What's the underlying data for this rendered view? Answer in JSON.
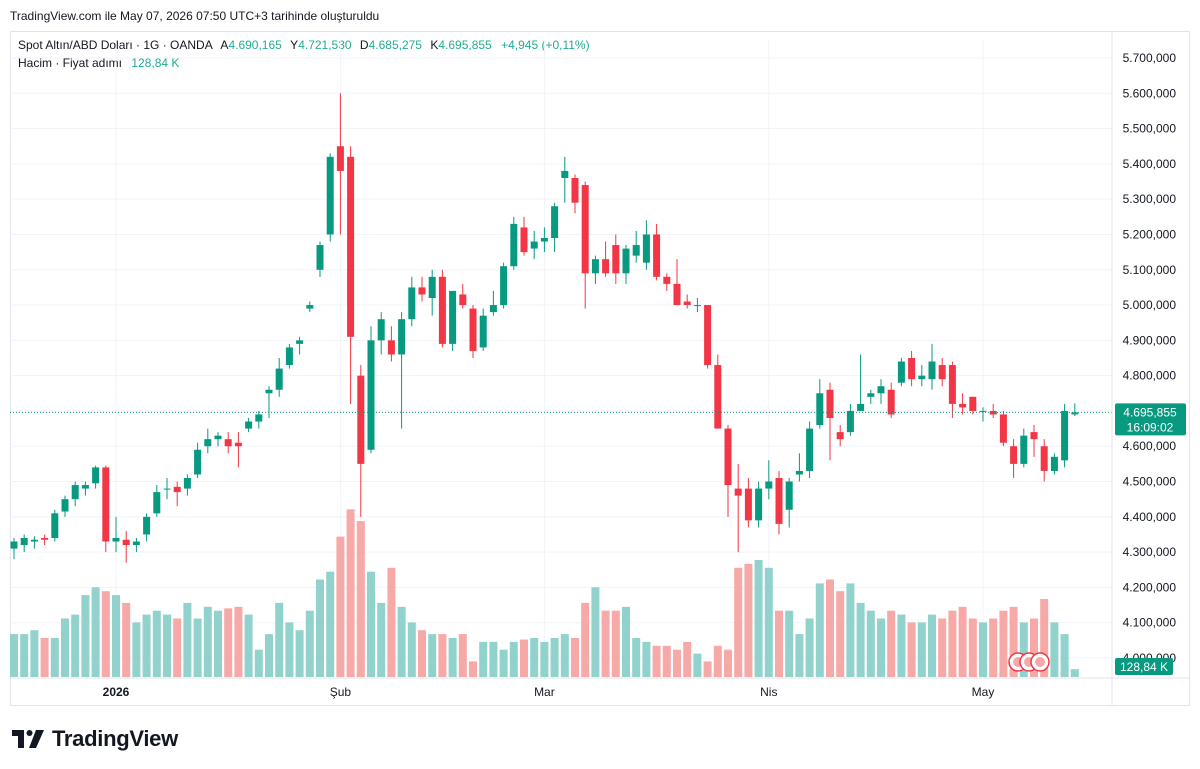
{
  "header": {
    "created_text": "TradingView.com ile May 07, 2026 07:50 UTC+3 tarihinde oluşturuldu"
  },
  "legend": {
    "symbol": "Spot Altın/ABD Doları · 1G · OANDA",
    "open_label": "A",
    "open_value": "4.690,165",
    "high_label": "Y",
    "high_value": "4.721,530",
    "low_label": "D",
    "low_value": "4.685,275",
    "close_label": "K",
    "close_value": "4.695,855",
    "change": "+4,945 (+0,11%)",
    "volume_label": "Hacim · Fiyat adımı",
    "volume_value": "128,84 K"
  },
  "brand": {
    "name": "TradingView"
  },
  "chart_data": {
    "type": "candlestick",
    "title": "Spot Altın/ABD Doları · 1G · OANDA",
    "ylim": [
      4000000,
      5700000
    ],
    "y_tick_labels": [
      "5.700,000",
      "5.600,000",
      "5.500,000",
      "5.400,000",
      "5.300,000",
      "5.200,000",
      "5.100,000",
      "5.000,000",
      "4.900,000",
      "4.800,000",
      "4.700,000",
      "4.600,000",
      "4.500,000",
      "4.400,000",
      "4.300,000",
      "4.200,000",
      "4.100,000",
      "4.000,000"
    ],
    "y_tick_values": [
      5700000,
      5600000,
      5500000,
      5400000,
      5300000,
      5200000,
      5100000,
      5000000,
      4900000,
      4800000,
      4700000,
      4600000,
      4500000,
      4400000,
      4300000,
      4200000,
      4100000,
      4000000
    ],
    "x_tick_labels": [
      {
        "label": "2026",
        "index": 10
      },
      {
        "label": "Şub",
        "index": 32
      },
      {
        "label": "Mar",
        "index": 52
      },
      {
        "label": "Nis",
        "index": 74
      },
      {
        "label": "May",
        "index": 95
      }
    ],
    "last_price_label": "4.695,855",
    "countdown": "16:09:02",
    "volume_label": "128,84 K",
    "up_color": "#089981",
    "down_color": "#f23645",
    "up_volume_color": "#92d2cc",
    "down_volume_color": "#f7a9a7",
    "candles": [
      {
        "o": 4310000,
        "h": 4340000,
        "l": 4280000,
        "c": 4330000,
        "v": 0.55
      },
      {
        "o": 4320000,
        "h": 4350000,
        "l": 4300000,
        "c": 4340000,
        "v": 0.55
      },
      {
        "o": 4330000,
        "h": 4345000,
        "l": 4310000,
        "c": 4335000,
        "v": 0.6
      },
      {
        "o": 4340000,
        "h": 4350000,
        "l": 4320000,
        "c": 4335000,
        "v": 0.5
      },
      {
        "o": 4340000,
        "h": 4420000,
        "l": 4330000,
        "c": 4410000,
        "v": 0.5
      },
      {
        "o": 4415000,
        "h": 4460000,
        "l": 4400000,
        "c": 4450000,
        "v": 0.75
      },
      {
        "o": 4450000,
        "h": 4500000,
        "l": 4430000,
        "c": 4490000,
        "v": 0.8
      },
      {
        "o": 4480000,
        "h": 4500000,
        "l": 4460000,
        "c": 4490000,
        "v": 1.05
      },
      {
        "o": 4495000,
        "h": 4545000,
        "l": 4480000,
        "c": 4540000,
        "v": 1.15
      },
      {
        "o": 4540000,
        "h": 4545000,
        "l": 4300000,
        "c": 4330000,
        "v": 1.1
      },
      {
        "o": 4330000,
        "h": 4400000,
        "l": 4300000,
        "c": 4340000,
        "v": 1.05
      },
      {
        "o": 4335000,
        "h": 4360000,
        "l": 4270000,
        "c": 4320000,
        "v": 0.95
      },
      {
        "o": 4320000,
        "h": 4340000,
        "l": 4300000,
        "c": 4330000,
        "v": 0.7
      },
      {
        "o": 4350000,
        "h": 4410000,
        "l": 4330000,
        "c": 4400000,
        "v": 0.8
      },
      {
        "o": 4410000,
        "h": 4490000,
        "l": 4400000,
        "c": 4470000,
        "v": 0.85
      },
      {
        "o": 4480000,
        "h": 4510000,
        "l": 4450000,
        "c": 4480000,
        "v": 0.8
      },
      {
        "o": 4485000,
        "h": 4500000,
        "l": 4430000,
        "c": 4470000,
        "v": 0.75
      },
      {
        "o": 4480000,
        "h": 4520000,
        "l": 4460000,
        "c": 4510000,
        "v": 0.95
      },
      {
        "o": 4520000,
        "h": 4610000,
        "l": 4510000,
        "c": 4590000,
        "v": 0.75
      },
      {
        "o": 4600000,
        "h": 4650000,
        "l": 4580000,
        "c": 4620000,
        "v": 0.9
      },
      {
        "o": 4620000,
        "h": 4640000,
        "l": 4600000,
        "c": 4630000,
        "v": 0.85
      },
      {
        "o": 4620000,
        "h": 4640000,
        "l": 4580000,
        "c": 4600000,
        "v": 0.88
      },
      {
        "o": 4610000,
        "h": 4640000,
        "l": 4540000,
        "c": 4600000,
        "v": 0.9
      },
      {
        "o": 4650000,
        "h": 4680000,
        "l": 4640000,
        "c": 4670000,
        "v": 0.8
      },
      {
        "o": 4670000,
        "h": 4700000,
        "l": 4650000,
        "c": 4690000,
        "v": 0.35
      },
      {
        "o": 4750000,
        "h": 4770000,
        "l": 4680000,
        "c": 4760000,
        "v": 0.55
      },
      {
        "o": 4760000,
        "h": 4850000,
        "l": 4740000,
        "c": 4820000,
        "v": 0.95
      },
      {
        "o": 4830000,
        "h": 4890000,
        "l": 4820000,
        "c": 4880000,
        "v": 0.7
      },
      {
        "o": 4890000,
        "h": 4910000,
        "l": 4860000,
        "c": 4900000,
        "v": 0.6
      },
      {
        "o": 4990000,
        "h": 5010000,
        "l": 4980000,
        "c": 5000000,
        "v": 0.85
      },
      {
        "o": 5100000,
        "h": 5180000,
        "l": 5080000,
        "c": 5170000,
        "v": 1.25
      },
      {
        "o": 5200000,
        "h": 5430000,
        "l": 5180000,
        "c": 5420000,
        "v": 1.35
      },
      {
        "o": 5450000,
        "h": 5600000,
        "l": 5200000,
        "c": 5380000,
        "v": 1.8
      },
      {
        "o": 5420000,
        "h": 5450000,
        "l": 4720000,
        "c": 4910000,
        "v": 2.15
      },
      {
        "o": 4800000,
        "h": 4830000,
        "l": 4400000,
        "c": 4550000,
        "v": 2.0
      },
      {
        "o": 4590000,
        "h": 4940000,
        "l": 4580000,
        "c": 4900000,
        "v": 1.35
      },
      {
        "o": 4900000,
        "h": 4980000,
        "l": 4860000,
        "c": 4960000,
        "v": 0.95
      },
      {
        "o": 4900000,
        "h": 4940000,
        "l": 4840000,
        "c": 4860000,
        "v": 1.4
      },
      {
        "o": 4860000,
        "h": 4980000,
        "l": 4650000,
        "c": 4960000,
        "v": 0.9
      },
      {
        "o": 4960000,
        "h": 5080000,
        "l": 4940000,
        "c": 5050000,
        "v": 0.7
      },
      {
        "o": 5050000,
        "h": 5080000,
        "l": 5010000,
        "c": 5030000,
        "v": 0.6
      },
      {
        "o": 5020000,
        "h": 5100000,
        "l": 4970000,
        "c": 5080000,
        "v": 0.55
      },
      {
        "o": 5080000,
        "h": 5100000,
        "l": 4880000,
        "c": 4890000,
        "v": 0.55
      },
      {
        "o": 4890000,
        "h": 5040000,
        "l": 4870000,
        "c": 5040000,
        "v": 0.5
      },
      {
        "o": 5030000,
        "h": 5060000,
        "l": 4990000,
        "c": 5000000,
        "v": 0.55
      },
      {
        "o": 4990000,
        "h": 5000000,
        "l": 4850000,
        "c": 4870000,
        "v": 0.2
      },
      {
        "o": 4880000,
        "h": 4990000,
        "l": 4870000,
        "c": 4970000,
        "v": 0.45
      },
      {
        "o": 4980000,
        "h": 5040000,
        "l": 4970000,
        "c": 5000000,
        "v": 0.45
      },
      {
        "o": 5000000,
        "h": 5120000,
        "l": 4990000,
        "c": 5110000,
        "v": 0.35
      },
      {
        "o": 5110000,
        "h": 5250000,
        "l": 5100000,
        "c": 5230000,
        "v": 0.45
      },
      {
        "o": 5220000,
        "h": 5250000,
        "l": 5140000,
        "c": 5150000,
        "v": 0.48
      },
      {
        "o": 5160000,
        "h": 5210000,
        "l": 5130000,
        "c": 5180000,
        "v": 0.5
      },
      {
        "o": 5180000,
        "h": 5220000,
        "l": 5150000,
        "c": 5190000,
        "v": 0.45
      },
      {
        "o": 5190000,
        "h": 5290000,
        "l": 5150000,
        "c": 5280000,
        "v": 0.5
      },
      {
        "o": 5360000,
        "h": 5420000,
        "l": 5290000,
        "c": 5380000,
        "v": 0.55
      },
      {
        "o": 5360000,
        "h": 5370000,
        "l": 5260000,
        "c": 5290000,
        "v": 0.5
      },
      {
        "o": 5340000,
        "h": 5350000,
        "l": 4990000,
        "c": 5090000,
        "v": 0.95
      },
      {
        "o": 5090000,
        "h": 5140000,
        "l": 5060000,
        "c": 5130000,
        "v": 1.15
      },
      {
        "o": 5130000,
        "h": 5180000,
        "l": 5080000,
        "c": 5090000,
        "v": 0.85
      },
      {
        "o": 5170000,
        "h": 5200000,
        "l": 5060000,
        "c": 5090000,
        "v": 0.85
      },
      {
        "o": 5090000,
        "h": 5170000,
        "l": 5060000,
        "c": 5160000,
        "v": 0.9
      },
      {
        "o": 5140000,
        "h": 5210000,
        "l": 5120000,
        "c": 5170000,
        "v": 0.5
      },
      {
        "o": 5120000,
        "h": 5240000,
        "l": 5100000,
        "c": 5200000,
        "v": 0.45
      },
      {
        "o": 5200000,
        "h": 5230000,
        "l": 5070000,
        "c": 5080000,
        "v": 0.4
      },
      {
        "o": 5080000,
        "h": 5090000,
        "l": 5040000,
        "c": 5060000,
        "v": 0.4
      },
      {
        "o": 5060000,
        "h": 5130000,
        "l": 5000000,
        "c": 5000000,
        "v": 0.35
      },
      {
        "o": 5010000,
        "h": 5030000,
        "l": 4990000,
        "c": 5000000,
        "v": 0.45
      },
      {
        "o": 5000000,
        "h": 5020000,
        "l": 4980000,
        "c": 5000000,
        "v": 0.3
      },
      {
        "o": 5000000,
        "h": 5000000,
        "l": 4820000,
        "c": 4830000,
        "v": 0.2
      },
      {
        "o": 4830000,
        "h": 4860000,
        "l": 4650000,
        "c": 4650000,
        "v": 0.4
      },
      {
        "o": 4650000,
        "h": 4660000,
        "l": 4400000,
        "c": 4490000,
        "v": 0.35
      },
      {
        "o": 4480000,
        "h": 4550000,
        "l": 4300000,
        "c": 4460000,
        "v": 1.4
      },
      {
        "o": 4480000,
        "h": 4510000,
        "l": 4370000,
        "c": 4390000,
        "v": 1.45
      },
      {
        "o": 4390000,
        "h": 4500000,
        "l": 4370000,
        "c": 4480000,
        "v": 1.5
      },
      {
        "o": 4480000,
        "h": 4560000,
        "l": 4450000,
        "c": 4500000,
        "v": 1.4
      },
      {
        "o": 4510000,
        "h": 4530000,
        "l": 4350000,
        "c": 4380000,
        "v": 0.85
      },
      {
        "o": 4420000,
        "h": 4510000,
        "l": 4370000,
        "c": 4500000,
        "v": 0.85
      },
      {
        "o": 4520000,
        "h": 4580000,
        "l": 4500000,
        "c": 4530000,
        "v": 0.55
      },
      {
        "o": 4530000,
        "h": 4670000,
        "l": 4510000,
        "c": 4650000,
        "v": 0.75
      },
      {
        "o": 4660000,
        "h": 4790000,
        "l": 4650000,
        "c": 4750000,
        "v": 1.2
      },
      {
        "o": 4760000,
        "h": 4780000,
        "l": 4560000,
        "c": 4680000,
        "v": 1.25
      },
      {
        "o": 4640000,
        "h": 4660000,
        "l": 4600000,
        "c": 4620000,
        "v": 1.1
      },
      {
        "o": 4640000,
        "h": 4720000,
        "l": 4630000,
        "c": 4700000,
        "v": 1.2
      },
      {
        "o": 4700000,
        "h": 4860000,
        "l": 4700000,
        "c": 4720000,
        "v": 0.95
      },
      {
        "o": 4740000,
        "h": 4760000,
        "l": 4720000,
        "c": 4750000,
        "v": 0.85
      },
      {
        "o": 4750000,
        "h": 4790000,
        "l": 4720000,
        "c": 4770000,
        "v": 0.75
      },
      {
        "o": 4760000,
        "h": 4780000,
        "l": 4680000,
        "c": 4690000,
        "v": 0.85
      },
      {
        "o": 4780000,
        "h": 4850000,
        "l": 4770000,
        "c": 4840000,
        "v": 0.8
      },
      {
        "o": 4850000,
        "h": 4870000,
        "l": 4770000,
        "c": 4790000,
        "v": 0.7
      },
      {
        "o": 4790000,
        "h": 4830000,
        "l": 4770000,
        "c": 4800000,
        "v": 0.7
      },
      {
        "o": 4790000,
        "h": 4890000,
        "l": 4760000,
        "c": 4840000,
        "v": 0.8
      },
      {
        "o": 4830000,
        "h": 4850000,
        "l": 4770000,
        "c": 4790000,
        "v": 0.75
      },
      {
        "o": 4830000,
        "h": 4840000,
        "l": 4680000,
        "c": 4720000,
        "v": 0.85
      },
      {
        "o": 4720000,
        "h": 4750000,
        "l": 4690000,
        "c": 4710000,
        "v": 0.9
      }
    ],
    "tail_candles": [
      {
        "o": 4740000,
        "h": 4740000,
        "l": 4690000,
        "c": 4700000,
        "v": 0.75
      },
      {
        "o": 4700000,
        "h": 4710000,
        "l": 4670000,
        "c": 4700000,
        "v": 0.7
      },
      {
        "o": 4700000,
        "h": 4720000,
        "l": 4680000,
        "c": 4690000,
        "v": 0.75
      },
      {
        "o": 4690000,
        "h": 4700000,
        "l": 4600000,
        "c": 4610000,
        "v": 0.85
      },
      {
        "o": 4600000,
        "h": 4620000,
        "l": 4510000,
        "c": 4550000,
        "v": 0.9
      },
      {
        "o": 4550000,
        "h": 4650000,
        "l": 4540000,
        "c": 4630000,
        "v": 0.7
      },
      {
        "o": 4640000,
        "h": 4660000,
        "l": 4570000,
        "c": 4620000,
        "v": 0.75
      },
      {
        "o": 4600000,
        "h": 4620000,
        "l": 4500000,
        "c": 4530000,
        "v": 1.0
      },
      {
        "o": 4530000,
        "h": 4580000,
        "l": 4520000,
        "c": 4570000,
        "v": 0.7
      },
      {
        "o": 4560000,
        "h": 4720000,
        "l": 4540000,
        "c": 4700000,
        "v": 0.55
      },
      {
        "o": 4690165,
        "h": 4721530,
        "l": 4685275,
        "c": 4695855,
        "v": 0.1
      }
    ]
  }
}
